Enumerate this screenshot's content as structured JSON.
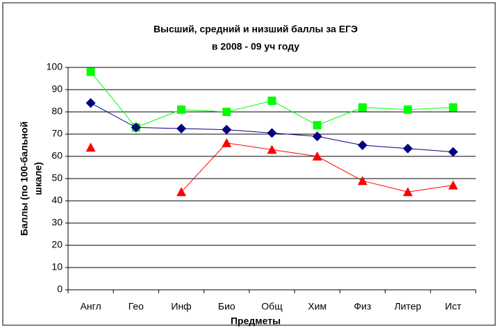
{
  "chart_data": {
    "type": "line",
    "title": [
      "Высший, средний и низший баллы за ЕГЭ",
      "в 2008 - 09 уч году"
    ],
    "y_label": [
      "Баллы (по 100-бальной",
      "шкале)"
    ],
    "x_label": "Предметы",
    "categories": [
      "Англ",
      "Гео",
      "Инф",
      "Био",
      "Общ",
      "Хим",
      "Физ",
      "Литер",
      "Ист"
    ],
    "series": [
      {
        "color": "#00ff00",
        "marker": "square",
        "values": [
          98,
          73,
          81,
          80,
          85,
          74,
          82,
          81,
          82
        ]
      },
      {
        "color": "#000080",
        "marker": "diamond",
        "values": [
          84,
          73,
          72.5,
          72,
          70.5,
          69,
          65,
          63.5,
          62
        ]
      },
      {
        "color": "#ff0000",
        "marker": "triangle",
        "values": [
          64,
          null,
          44,
          66,
          63,
          60,
          49,
          44,
          47
        ]
      }
    ],
    "ylim": [
      0,
      100
    ],
    "yticks": [
      0,
      10,
      20,
      30,
      40,
      50,
      60,
      70,
      80,
      90,
      100
    ],
    "grid": true
  }
}
